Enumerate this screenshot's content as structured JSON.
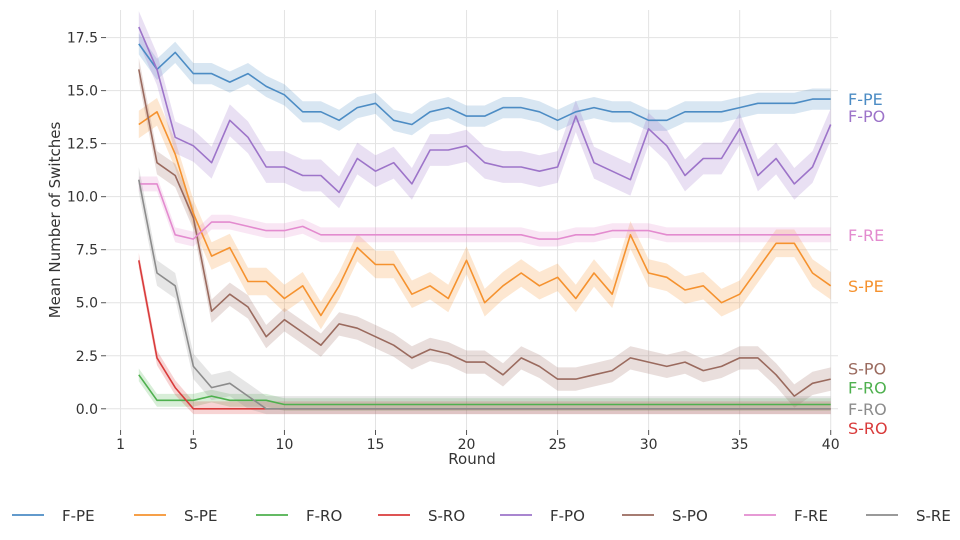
{
  "chart_data": {
    "type": "line",
    "title": "",
    "xlabel": "Round",
    "ylabel": "Mean Number of Switches",
    "xlim": [
      0.2,
      40.4
    ],
    "ylim": [
      -1.0,
      18.8
    ],
    "xticks": [
      1,
      5,
      10,
      15,
      20,
      25,
      30,
      35,
      40
    ],
    "xtick_labels": [
      "1",
      "5",
      "10",
      "15",
      "20",
      "25",
      "30",
      "35",
      "40"
    ],
    "yticks": [
      0.0,
      2.5,
      5.0,
      7.5,
      10.0,
      12.5,
      15.0,
      17.5
    ],
    "ytick_labels": [
      "0.0",
      "2.5",
      "5.0",
      "7.5",
      "10.0",
      "12.5",
      "15.0",
      "17.5"
    ],
    "grid": true,
    "legend_position": "bottom",
    "x": [
      2,
      3,
      4,
      5,
      6,
      7,
      8,
      9,
      10,
      11,
      12,
      13,
      14,
      15,
      16,
      17,
      18,
      19,
      20,
      21,
      22,
      23,
      24,
      25,
      26,
      27,
      28,
      29,
      30,
      31,
      32,
      33,
      34,
      35,
      36,
      37,
      38,
      39,
      40
    ],
    "series": [
      {
        "name": "F-PE",
        "color": "#4c8cc4",
        "band": 0.5,
        "values": [
          17.2,
          16.0,
          16.8,
          15.8,
          15.8,
          15.4,
          15.8,
          15.2,
          14.8,
          14.0,
          14.0,
          13.6,
          14.2,
          14.4,
          13.6,
          13.4,
          14.0,
          14.2,
          13.8,
          13.8,
          14.2,
          14.2,
          14.0,
          13.6,
          14.0,
          14.2,
          14.0,
          14.0,
          13.6,
          13.6,
          14.0,
          14.0,
          14.0,
          14.2,
          14.4,
          14.4,
          14.4,
          14.6,
          14.6
        ]
      },
      {
        "name": "S-PE",
        "color": "#f5922f",
        "band": 0.65,
        "values": [
          13.4,
          14.0,
          12.0,
          9.2,
          7.2,
          7.6,
          6.0,
          6.0,
          5.2,
          5.8,
          4.4,
          5.8,
          7.6,
          6.8,
          6.8,
          5.4,
          5.8,
          5.2,
          7.0,
          5.0,
          5.8,
          6.4,
          5.8,
          6.2,
          5.2,
          6.4,
          5.4,
          8.2,
          6.4,
          6.2,
          5.6,
          5.8,
          5.0,
          5.4,
          6.6,
          7.8,
          7.8,
          6.4,
          5.8
        ]
      },
      {
        "name": "F-RO",
        "color": "#4eb04e",
        "band": 0.3,
        "values": [
          1.6,
          0.4,
          0.4,
          0.4,
          0.6,
          0.4,
          0.4,
          0.4,
          0.2,
          0.2,
          0.2,
          0.2,
          0.2,
          0.2,
          0.2,
          0.2,
          0.2,
          0.2,
          0.2,
          0.2,
          0.2,
          0.2,
          0.2,
          0.2,
          0.2,
          0.2,
          0.2,
          0.2,
          0.2,
          0.2,
          0.2,
          0.2,
          0.2,
          0.2,
          0.2,
          0.2,
          0.2,
          0.2,
          0.2
        ]
      },
      {
        "name": "S-RO",
        "color": "#d93b3b",
        "band": 0.35,
        "values": [
          7.0,
          2.4,
          1.0,
          0.0,
          0.0,
          0.0,
          0.0,
          0.0,
          0.0,
          0.0,
          0.0,
          0.0,
          0.0,
          0.0,
          0.0,
          0.0,
          0.0,
          0.0,
          0.0,
          0.0,
          0.0,
          0.0,
          0.0,
          0.0,
          0.0,
          0.0,
          0.0,
          0.0,
          0.0,
          0.0,
          0.0,
          0.0,
          0.0,
          0.0,
          0.0,
          0.0,
          0.0,
          0.0,
          0.0
        ]
      },
      {
        "name": "F-PO",
        "color": "#9d74c9",
        "band": 0.75,
        "values": [
          18.0,
          16.0,
          12.8,
          12.4,
          11.6,
          13.6,
          12.8,
          11.4,
          11.4,
          11.0,
          11.0,
          10.2,
          11.8,
          11.2,
          11.6,
          10.6,
          12.2,
          12.2,
          12.4,
          11.6,
          11.4,
          11.4,
          11.2,
          11.4,
          13.8,
          11.6,
          11.2,
          10.8,
          13.2,
          12.4,
          11.0,
          11.8,
          11.8,
          13.2,
          11.0,
          11.8,
          10.6,
          11.4,
          13.4
        ]
      },
      {
        "name": "S-PO",
        "color": "#9a6a5e",
        "band": 0.55,
        "values": [
          16.0,
          11.6,
          11.0,
          9.0,
          4.6,
          5.4,
          4.8,
          3.4,
          4.2,
          3.6,
          3.0,
          4.0,
          3.8,
          3.4,
          3.0,
          2.4,
          2.8,
          2.6,
          2.2,
          2.2,
          1.6,
          2.4,
          2.0,
          1.4,
          1.4,
          1.6,
          1.8,
          2.4,
          2.2,
          2.0,
          2.2,
          1.8,
          2.0,
          2.4,
          2.4,
          1.6,
          0.6,
          1.2,
          1.4
        ]
      },
      {
        "name": "F-RE",
        "color": "#e38bcf",
        "band": 0.35,
        "values": [
          10.6,
          10.6,
          8.2,
          8.0,
          8.8,
          8.8,
          8.6,
          8.4,
          8.4,
          8.6,
          8.2,
          8.2,
          8.2,
          8.2,
          8.2,
          8.2,
          8.2,
          8.2,
          8.2,
          8.2,
          8.2,
          8.2,
          8.0,
          8.0,
          8.2,
          8.2,
          8.4,
          8.4,
          8.4,
          8.2,
          8.2,
          8.2,
          8.2,
          8.2,
          8.2,
          8.2,
          8.2,
          8.2,
          8.2
        ]
      },
      {
        "name": "S-RE",
        "color": "#8c8c8c",
        "band": 0.6,
        "values": [
          10.8,
          6.4,
          5.8,
          2.0,
          1.0,
          1.2,
          0.6,
          0.0,
          0.0,
          0.0,
          0.0,
          0.0,
          0.0,
          0.0,
          0.0,
          0.0,
          0.0,
          0.0,
          0.0,
          0.0,
          0.0,
          0.0,
          0.0,
          0.0,
          0.0,
          0.0,
          0.0,
          0.0,
          0.0,
          0.0,
          0.0,
          0.0,
          0.0,
          0.0,
          0.0,
          0.0,
          0.0,
          0.0,
          0.0
        ]
      }
    ],
    "end_labels": [
      {
        "text": "F-PE",
        "color": "#4c8cc4",
        "y": 14.6
      },
      {
        "text": "F-PO",
        "color": "#9d74c9",
        "y": 13.8
      },
      {
        "text": "F-RE",
        "color": "#e38bcf",
        "y": 8.2
      },
      {
        "text": "S-PE",
        "color": "#f5922f",
        "y": 5.8
      },
      {
        "text": "S-PO",
        "color": "#9a6a5e",
        "y": 1.9
      },
      {
        "text": "F-RO",
        "color": "#4eb04e",
        "y": 1.0
      },
      {
        "text": "F-RO_",
        "color": "#8c8c8c",
        "y": 0.0,
        "display": "F-RO"
      },
      {
        "text": "S-RO",
        "color": "#d93b3b",
        "y": -0.9
      }
    ],
    "legend": [
      "F-PE",
      "S-PE",
      "F-RO",
      "S-RO",
      "F-PO",
      "S-PO",
      "F-RE",
      "S-RE"
    ]
  }
}
